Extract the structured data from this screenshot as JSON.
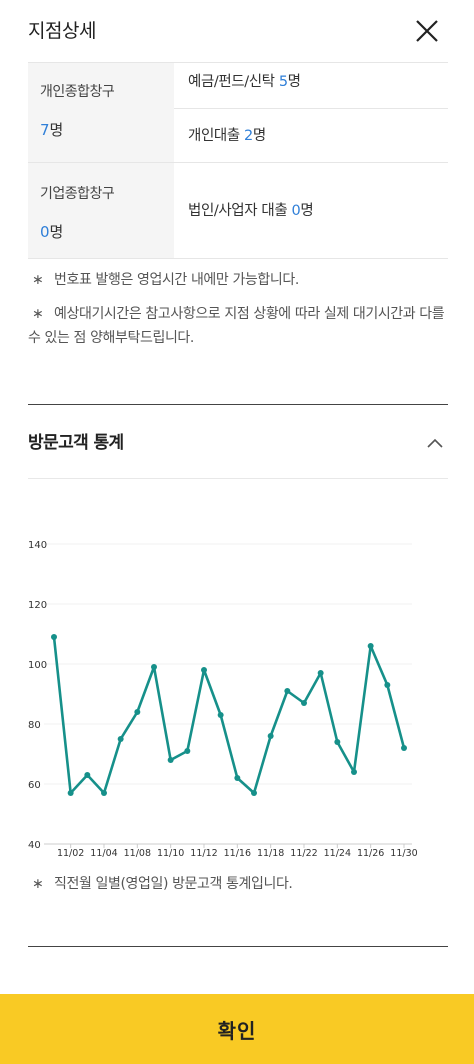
{
  "header": {
    "title": "지점상세"
  },
  "wait": {
    "personal": {
      "label": "개인종합창구",
      "count": "7",
      "unit": "명"
    },
    "corporate": {
      "label": "기업종합창구",
      "count": "0",
      "unit": "명"
    },
    "deposit": {
      "label": "예금/펀드/신탁",
      "count": "5",
      "unit": "명"
    },
    "personal_loan": {
      "label": "개인대출",
      "count": "2",
      "unit": "명"
    },
    "corp_loan": {
      "label": "법인/사업자 대출",
      "count": "0",
      "unit": "명"
    }
  },
  "notes": {
    "asterisk": "∗",
    "n1": "번호표 발행은 영업시간 내에만 가능합니다.",
    "n2": "예상대기시간은 참고사항으로 지점 상황에 따라 실제 대기시간과 다를 수 있는 점 양해부탁드립니다."
  },
  "stats": {
    "title": "방문고객 통계",
    "note": "직전월 일별(영업일) 방문고객 통계입니다."
  },
  "chart_data": {
    "type": "line",
    "y_ticks": [
      40,
      60,
      80,
      100,
      120,
      140
    ],
    "ylim": [
      40,
      140
    ],
    "x_tick_labels": [
      "11/02",
      "11/04",
      "11/08",
      "11/10",
      "11/12",
      "11/16",
      "11/18",
      "11/22",
      "11/24",
      "11/26",
      "11/30"
    ],
    "x_tick_indices": [
      1,
      3,
      5,
      7,
      9,
      11,
      13,
      15,
      17,
      19,
      21
    ],
    "values": [
      109,
      57,
      63,
      57,
      75,
      84,
      99,
      68,
      71,
      98,
      83,
      62,
      57,
      76,
      91,
      87,
      97,
      74,
      64,
      106,
      93,
      72
    ],
    "color": "#16908a",
    "grid": true
  },
  "confirm": {
    "label": "확인"
  },
  "colors": {
    "accent": "#f9ca24",
    "number": "#2f7fd8",
    "line": "#16908a"
  }
}
